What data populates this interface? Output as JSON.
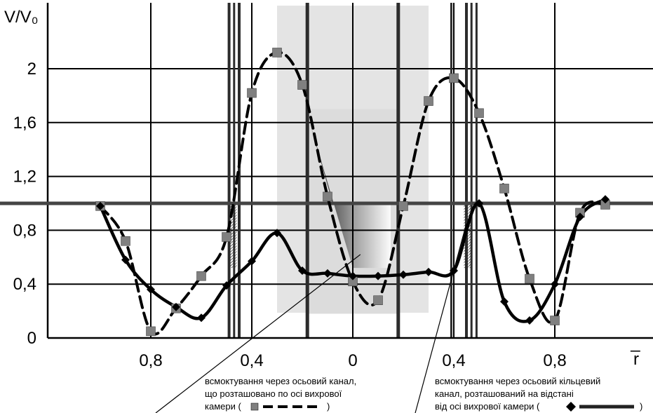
{
  "chart_data": {
    "type": "line",
    "ylabel": "V/V₀",
    "xlabel": "r̅",
    "x_tick_labels": [
      {
        "value": -0.8,
        "label": "0,8"
      },
      {
        "value": -0.4,
        "label": "0,4"
      },
      {
        "value": 0,
        "label": "0"
      },
      {
        "value": 0.4,
        "label": "0,4"
      },
      {
        "value": 0.8,
        "label": "0,8"
      }
    ],
    "y_tick_labels": [
      {
        "value": 0,
        "label": "0"
      },
      {
        "value": 0.4,
        "label": "0,4"
      },
      {
        "value": 0.8,
        "label": "0,8"
      },
      {
        "value": 1.2,
        "label": "1,2"
      },
      {
        "value": 1.6,
        "label": "1,6"
      },
      {
        "value": 2.0,
        "label": "2"
      }
    ],
    "xlim": [
      -1.12,
      1.12
    ],
    "ylim": [
      0,
      2.35
    ],
    "grid": true,
    "reference_line_y": 1.0,
    "series": [
      {
        "marker": "square",
        "line": "dashed",
        "color": "#000000",
        "marker_color": "#808080",
        "x": [
          -1.0,
          -0.9,
          -0.8,
          -0.7,
          -0.6,
          -0.5,
          -0.4,
          -0.3,
          -0.2,
          -0.1,
          0.0,
          0.1,
          0.2,
          0.3,
          0.4,
          0.5,
          0.6,
          0.7,
          0.8,
          0.9,
          1.0
        ],
        "y": [
          0.98,
          0.72,
          0.05,
          0.22,
          0.46,
          0.75,
          1.82,
          2.12,
          1.88,
          1.05,
          0.42,
          0.28,
          0.98,
          1.76,
          1.93,
          1.67,
          1.11,
          0.44,
          0.13,
          0.93,
          0.99
        ]
      },
      {
        "marker": "diamond",
        "line": "solid",
        "color": "#000000",
        "marker_color": "#000000",
        "x": [
          -1.0,
          -0.9,
          -0.8,
          -0.7,
          -0.6,
          -0.5,
          -0.4,
          -0.3,
          -0.2,
          -0.1,
          0.0,
          0.1,
          0.2,
          0.3,
          0.4,
          0.5,
          0.6,
          0.7,
          0.8,
          0.9,
          1.0
        ],
        "y": [
          0.98,
          0.58,
          0.36,
          0.23,
          0.15,
          0.39,
          0.57,
          0.78,
          0.5,
          0.48,
          0.46,
          0.46,
          0.47,
          0.49,
          0.5,
          1.0,
          0.27,
          0.13,
          0.4,
          0.9,
          1.03
        ]
      }
    ],
    "annotations": [
      {
        "lines": [
          "всмоктування через осьовий канал,",
          "що розташовано по осі вихрової",
          "камери ("
        ],
        "legend_close": ")"
      },
      {
        "lines": [
          "всмоктування через осьовий кільцевий",
          "канал, розташований на відстані",
          "від осі вихрової камери ("
        ],
        "legend_close": ")"
      }
    ]
  }
}
